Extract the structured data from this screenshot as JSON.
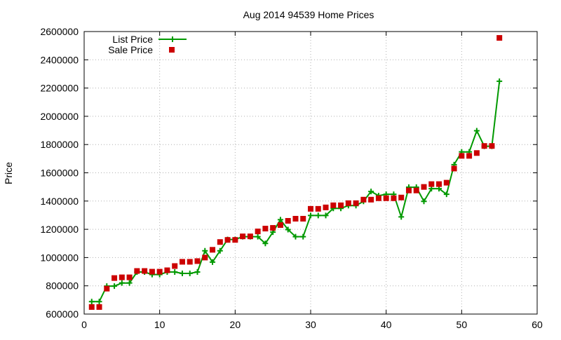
{
  "chart_data": {
    "type": "scatter",
    "title": "Aug 2014 94539 Home Prices",
    "xlabel": "",
    "ylabel": "Price",
    "xlim": [
      0,
      60
    ],
    "ylim": [
      600000,
      2600000
    ],
    "xticks": [
      0,
      10,
      20,
      30,
      40,
      50,
      60
    ],
    "yticks": [
      600000,
      800000,
      1000000,
      1200000,
      1400000,
      1600000,
      1800000,
      2000000,
      2200000,
      2400000,
      2600000
    ],
    "grid": true,
    "legend_position": "top-left",
    "series": [
      {
        "name": "List Price",
        "style": "lines+points",
        "marker": "plus",
        "color": "#009900",
        "x": [
          1,
          2,
          3,
          4,
          5,
          6,
          7,
          8,
          9,
          10,
          11,
          12,
          13,
          14,
          15,
          16,
          17,
          18,
          19,
          20,
          21,
          22,
          23,
          24,
          25,
          26,
          27,
          28,
          29,
          30,
          31,
          32,
          33,
          34,
          35,
          36,
          37,
          38,
          39,
          40,
          41,
          42,
          43,
          44,
          45,
          46,
          47,
          48,
          49,
          50,
          51,
          52,
          53,
          54,
          55
        ],
        "y": [
          688000,
          688000,
          798000,
          798000,
          820000,
          820000,
          898000,
          898000,
          880000,
          880000,
          898000,
          898000,
          888000,
          888000,
          898000,
          1048000,
          968000,
          1048000,
          1128000,
          1128000,
          1148000,
          1148000,
          1148000,
          1100000,
          1180000,
          1268000,
          1198000,
          1148000,
          1148000,
          1298000,
          1298000,
          1298000,
          1348000,
          1348000,
          1368000,
          1368000,
          1398000,
          1468000,
          1438000,
          1448000,
          1448000,
          1288000,
          1498000,
          1498000,
          1398000,
          1488000,
          1488000,
          1448000,
          1658000,
          1748000,
          1748000,
          1898000,
          1788000,
          1788000,
          2248000
        ]
      },
      {
        "name": "Sale Price",
        "style": "points",
        "marker": "square",
        "color": "#cc0000",
        "x": [
          1,
          2,
          3,
          4,
          5,
          6,
          7,
          8,
          9,
          10,
          11,
          12,
          13,
          14,
          15,
          16,
          17,
          18,
          19,
          20,
          21,
          22,
          23,
          24,
          25,
          26,
          27,
          28,
          29,
          30,
          31,
          32,
          33,
          34,
          35,
          36,
          37,
          38,
          39,
          40,
          41,
          42,
          43,
          44,
          45,
          46,
          47,
          48,
          49,
          50,
          51,
          52,
          53,
          54,
          55
        ],
        "y": [
          650000,
          650000,
          780000,
          855000,
          860000,
          860000,
          905000,
          905000,
          900000,
          900000,
          910000,
          940000,
          970000,
          970000,
          975000,
          1000000,
          1055000,
          1110000,
          1125000,
          1125000,
          1150000,
          1150000,
          1185000,
          1205000,
          1210000,
          1230000,
          1260000,
          1275000,
          1275000,
          1345000,
          1345000,
          1355000,
          1370000,
          1370000,
          1385000,
          1385000,
          1410000,
          1410000,
          1420000,
          1420000,
          1420000,
          1425000,
          1475000,
          1475000,
          1500000,
          1520000,
          1520000,
          1530000,
          1630000,
          1720000,
          1720000,
          1740000,
          1790000,
          1790000,
          2555000
        ]
      }
    ]
  }
}
